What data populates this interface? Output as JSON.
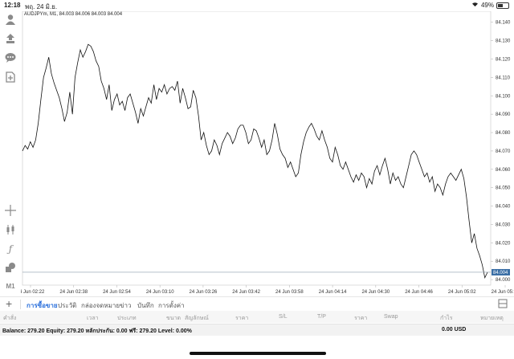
{
  "status": {
    "time": "12:18",
    "date": "พฤ. 24 มิ.ย.",
    "battery": "49%"
  },
  "chart": {
    "info": "AUDJPYm, M1, 84.003 84.006 84.003 84.004",
    "price_labels": [
      "84.140",
      "84.130",
      "84.120",
      "84.110",
      "84.100",
      "84.090",
      "84.080",
      "84.070",
      "84.060",
      "84.050",
      "84.040",
      "84.030",
      "84.020",
      "84.010",
      "84.000"
    ],
    "current_price": "84.004",
    "time_labels": [
      "24 Jun 02:22",
      "24 Jun 02:38",
      "24 Jun 02:54",
      "24 Jun 03:10",
      "24 Jun 03:26",
      "24 Jun 03:42",
      "24 Jun 03:58",
      "24 Jun 04:14",
      "24 Jun 04:30",
      "24 Jun 04:46",
      "24 Jun 05:02",
      "24 Jun 05:18"
    ],
    "accent": "#3a6ea5"
  },
  "chart_data": {
    "type": "line",
    "title": "AUDJPYm, M1",
    "ylim": [
      83.997,
      84.146
    ],
    "values": [
      84.07,
      84.073,
      84.071,
      84.075,
      84.072,
      84.076,
      84.085,
      84.098,
      84.11,
      84.115,
      84.121,
      84.112,
      84.107,
      84.103,
      84.099,
      84.093,
      84.086,
      84.091,
      84.102,
      84.09,
      84.11,
      84.118,
      84.125,
      84.121,
      84.124,
      84.128,
      84.127,
      84.124,
      84.119,
      84.116,
      84.108,
      84.104,
      84.098,
      84.106,
      84.092,
      84.098,
      84.101,
      84.095,
      84.097,
      84.092,
      84.099,
      84.101,
      84.096,
      84.091,
      84.085,
      84.093,
      84.089,
      84.094,
      84.099,
      84.096,
      84.106,
      84.098,
      84.104,
      84.102,
      84.106,
      84.101,
      84.104,
      84.105,
      84.103,
      84.108,
      84.096,
      84.104,
      84.099,
      84.093,
      84.094,
      84.103,
      84.099,
      84.089,
      84.076,
      84.08,
      84.073,
      84.068,
      84.07,
      84.076,
      84.073,
      84.068,
      84.074,
      84.077,
      84.08,
      84.078,
      84.074,
      84.077,
      84.082,
      84.084,
      84.084,
      84.08,
      84.074,
      84.076,
      84.082,
      84.081,
      84.077,
      84.072,
      84.076,
      84.068,
      84.07,
      84.076,
      84.085,
      84.079,
      84.071,
      84.068,
      84.066,
      84.061,
      84.064,
      84.06,
      84.056,
      84.058,
      84.068,
      84.075,
      84.08,
      84.083,
      84.085,
      84.082,
      84.078,
      84.076,
      84.081,
      84.076,
      84.072,
      84.066,
      84.064,
      84.072,
      84.068,
      84.062,
      84.06,
      84.064,
      84.06,
      84.056,
      84.053,
      84.057,
      84.054,
      84.058,
      84.056,
      84.05,
      84.055,
      84.052,
      84.059,
      84.062,
      84.057,
      84.062,
      84.066,
      84.06,
      84.052,
      84.058,
      84.054,
      84.056,
      84.052,
      84.05,
      84.056,
      84.062,
      84.068,
      84.07,
      84.068,
      84.064,
      84.06,
      84.056,
      84.058,
      84.053,
      84.056,
      84.048,
      84.052,
      84.05,
      84.046,
      84.052,
      84.056,
      84.058,
      84.056,
      84.054,
      84.057,
      84.06,
      84.055,
      84.045,
      84.032,
      84.02,
      84.025,
      84.017,
      84.013,
      84.008,
      84.001,
      84.004
    ]
  },
  "left_toolbar": {
    "m1_label": "M1"
  },
  "tabs": [
    "การซื้อขาย",
    "ประวัติ",
    "กล่องจดหมาย",
    "ข่าว",
    "บันทึก",
    "การตั้งค่า"
  ],
  "trade_header": [
    "คำสั่ง",
    "เวลา",
    "ประเภท",
    "ขนาด",
    "สัญลักษณ์",
    "ราคา",
    "S/L",
    "T/P",
    "ราคา",
    "Swap",
    "กำไร",
    "หมายเหตุ"
  ],
  "balance": {
    "text": "Balance: 279.20 Equity: 279.20 หลักประกัน: 0.00 ฟรี: 279.20 Level: 0.00%",
    "total": "0.00  USD"
  }
}
